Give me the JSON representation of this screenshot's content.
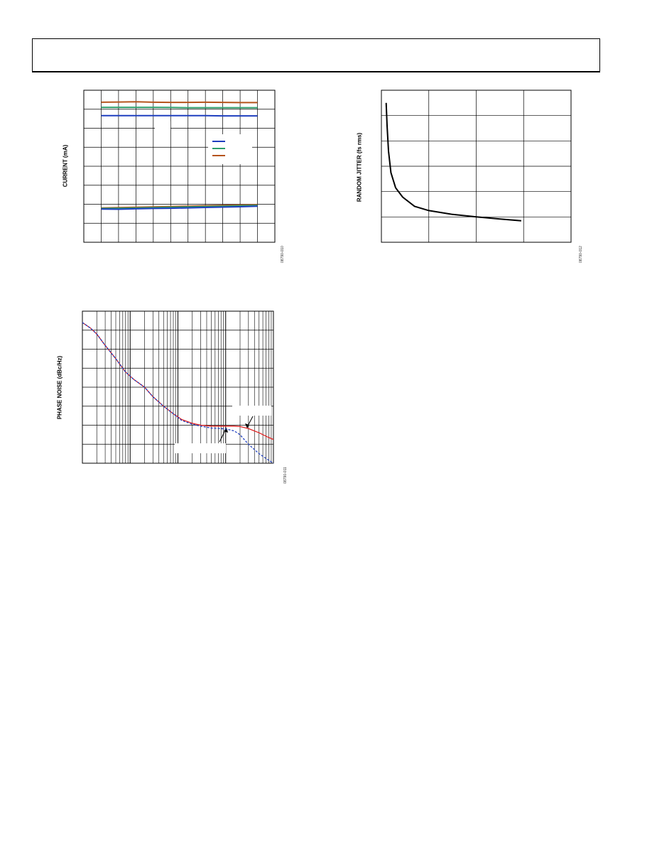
{
  "page": {
    "header_text": ""
  },
  "figures": {
    "current": {
      "ylabel": "CURRENT (mA)",
      "figcode": "08790-010"
    },
    "jitter": {
      "ylabel": "RANDOM JITTER (fs rms)",
      "figcode": "08790-012"
    },
    "phase_noise": {
      "ylabel": "PHASE NOISE (dBc/Hz)",
      "figcode": "08790-011"
    }
  },
  "chart_data": [
    {
      "type": "line",
      "title": "",
      "ylabel": "CURRENT (mA)",
      "xlabel": "",
      "grid": true,
      "xlim": [
        0,
        11
      ],
      "ylim": [
        0,
        8
      ],
      "legend": {
        "placement": "right",
        "colors": [
          "#1f3fbf",
          "#2e9e6b",
          "#b5541c"
        ]
      },
      "series": [
        {
          "color": "#b5541c",
          "x": [
            1,
            2,
            3,
            4,
            5,
            6,
            7,
            8,
            9,
            10
          ],
          "values": [
            7.37,
            7.38,
            7.39,
            7.37,
            7.36,
            7.36,
            7.37,
            7.36,
            7.35,
            7.35
          ]
        },
        {
          "color": "#2e9e6b",
          "x": [
            1,
            2,
            3,
            4,
            5,
            6,
            7,
            8,
            9,
            10
          ],
          "values": [
            7.1,
            7.1,
            7.1,
            7.1,
            7.09,
            7.08,
            7.08,
            7.08,
            7.08,
            7.08
          ]
        },
        {
          "color": "#1f3fbf",
          "x": [
            1,
            2,
            3,
            4,
            5,
            6,
            7,
            8,
            9,
            10
          ],
          "values": [
            6.66,
            6.66,
            6.66,
            6.66,
            6.66,
            6.66,
            6.66,
            6.65,
            6.65,
            6.65
          ]
        },
        {
          "color": "#b5541c",
          "x": [
            1,
            2,
            3,
            4,
            5,
            6,
            7,
            8,
            9,
            10
          ],
          "values": [
            1.8,
            1.82,
            1.84,
            1.86,
            1.88,
            1.9,
            1.92,
            1.94,
            1.96,
            1.97
          ]
        },
        {
          "color": "#2e9e6b",
          "x": [
            1,
            2,
            3,
            4,
            5,
            6,
            7,
            8,
            9,
            10
          ],
          "values": [
            1.78,
            1.79,
            1.8,
            1.82,
            1.84,
            1.86,
            1.88,
            1.9,
            1.92,
            1.94
          ]
        },
        {
          "color": "#1f3fbf",
          "x": [
            1,
            2,
            3,
            4,
            5,
            6,
            7,
            8,
            9,
            10
          ],
          "values": [
            1.75,
            1.74,
            1.76,
            1.78,
            1.79,
            1.81,
            1.83,
            1.85,
            1.87,
            1.9
          ]
        }
      ]
    },
    {
      "type": "line",
      "title": "",
      "ylabel": "RANDOM JITTER (fs rms)",
      "xlabel": "",
      "grid": true,
      "xlim": [
        0,
        4
      ],
      "ylim": [
        0,
        6
      ],
      "series": [
        {
          "color": "#000000",
          "x": [
            0.1,
            0.12,
            0.15,
            0.2,
            0.3,
            0.45,
            0.7,
            1.0,
            1.5,
            2.0,
            2.5,
            2.95
          ],
          "values": [
            5.5,
            4.6,
            3.6,
            2.75,
            2.15,
            1.78,
            1.42,
            1.25,
            1.1,
            1.0,
            0.92,
            0.85
          ]
        }
      ]
    },
    {
      "type": "line",
      "title": "",
      "ylabel": "PHASE NOISE (dBc/Hz)",
      "xlabel": "",
      "grid": true,
      "x_scale": "log",
      "xlim": [
        1,
        10000
      ],
      "ylim": [
        0,
        8
      ],
      "series": [
        {
          "color": "#e02020",
          "x": [
            1,
            1.5,
            2,
            3,
            5,
            8,
            12,
            20,
            30,
            50,
            80,
            120,
            200,
            300,
            500,
            800,
            1000,
            1500,
            2000,
            3000,
            5000,
            8000,
            10000
          ],
          "values": [
            7.4,
            7.1,
            6.8,
            6.2,
            5.5,
            4.8,
            4.4,
            4.0,
            3.5,
            3.0,
            2.6,
            2.3,
            2.1,
            2.0,
            1.95,
            1.95,
            1.95,
            1.95,
            1.93,
            1.82,
            1.6,
            1.35,
            1.25
          ]
        },
        {
          "color": "#1f3fbf",
          "x": [
            1,
            1.5,
            2,
            3,
            5,
            8,
            12,
            20,
            30,
            50,
            80,
            120,
            200,
            300,
            500,
            800,
            1000,
            1500,
            2000,
            3000,
            5000,
            8000,
            10000
          ],
          "values": [
            7.4,
            7.1,
            6.8,
            6.2,
            5.5,
            4.8,
            4.4,
            4.0,
            3.5,
            3.0,
            2.6,
            2.25,
            2.05,
            1.95,
            1.85,
            1.82,
            1.8,
            1.7,
            1.5,
            1.0,
            0.5,
            0.15,
            0.0
          ]
        }
      ]
    }
  ]
}
